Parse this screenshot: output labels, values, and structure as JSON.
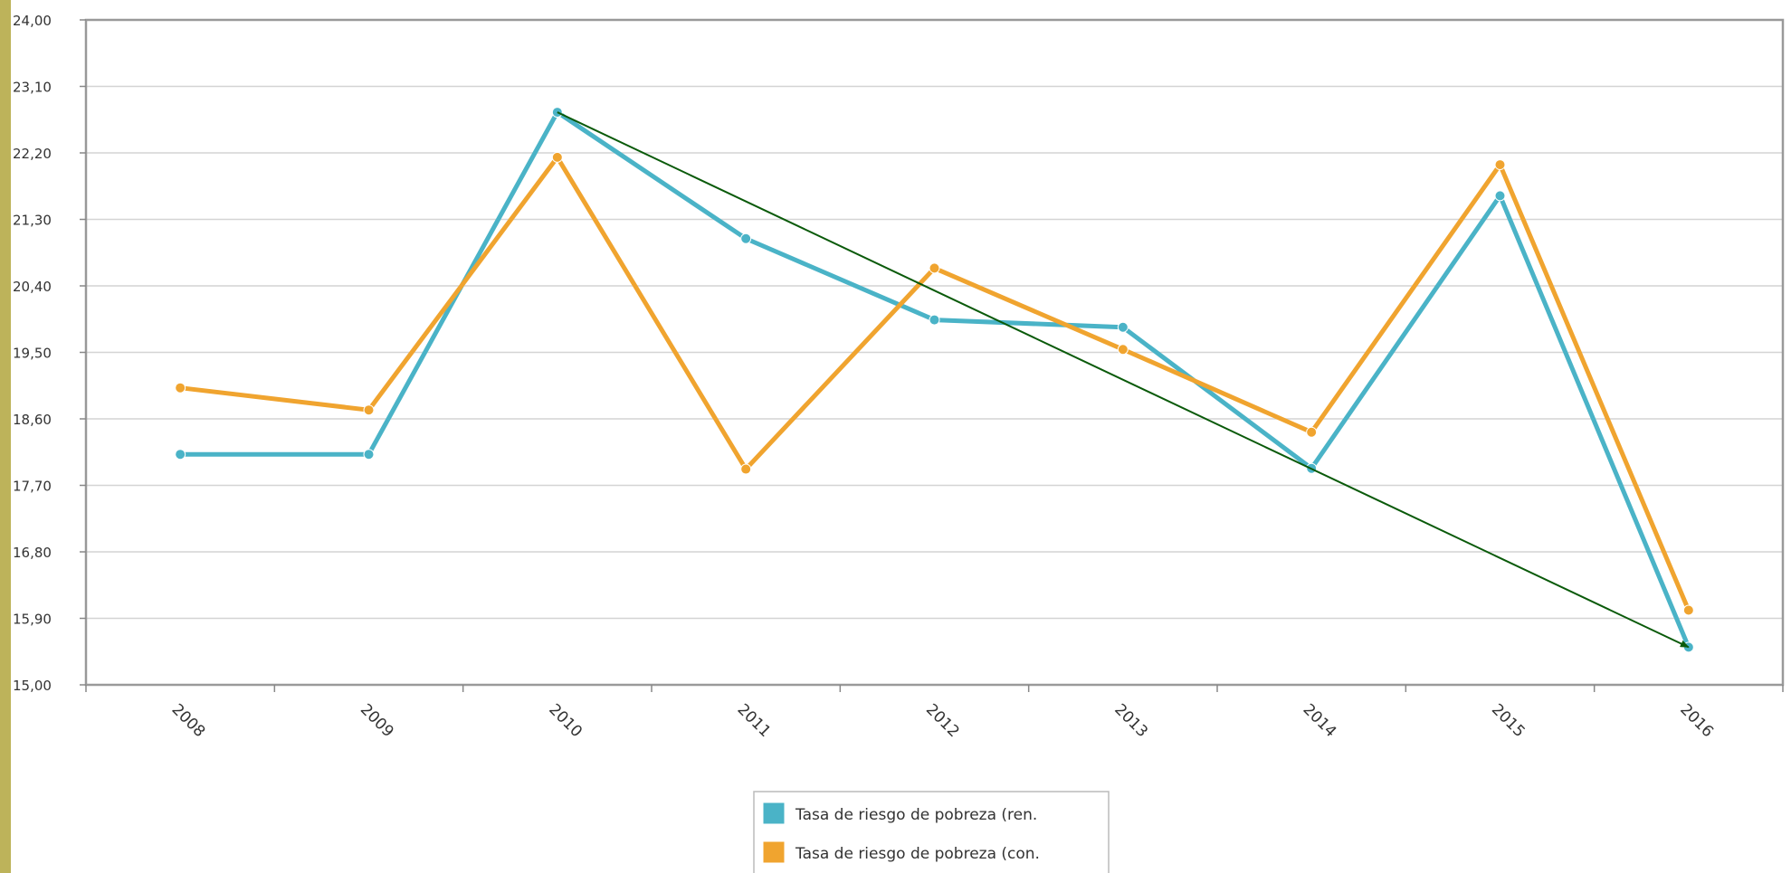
{
  "chart_data": {
    "type": "line",
    "categories": [
      "2008",
      "2009",
      "2010",
      "2011",
      "2012",
      "2013",
      "2014",
      "2015",
      "2016"
    ],
    "y_ticks": [
      "15,00",
      "15,90",
      "16,80",
      "17,70",
      "18,60",
      "19,50",
      "20,40",
      "21,30",
      "22,20",
      "23,10",
      "24,00"
    ],
    "ylim": [
      15.0,
      24.0
    ],
    "grid": true,
    "legend_position": "bottom-center",
    "series": [
      {
        "name": "Tasa de riesgo de pobreza (ren.",
        "color": "#4ab3c7",
        "values": [
          18.12,
          18.12,
          22.75,
          21.04,
          19.94,
          19.84,
          17.93,
          21.62,
          15.51
        ]
      },
      {
        "name": "Tasa de riesgo de pobreza (con.",
        "color": "#f0a42f",
        "values": [
          19.02,
          18.72,
          22.14,
          17.92,
          20.64,
          19.54,
          18.42,
          22.04,
          16.01
        ]
      }
    ],
    "annotation": {
      "type": "arrow",
      "color": "#0a5a0a",
      "from": {
        "x": "2010",
        "y": 22.75
      },
      "to": {
        "x": "2016",
        "y": 15.51
      }
    }
  }
}
